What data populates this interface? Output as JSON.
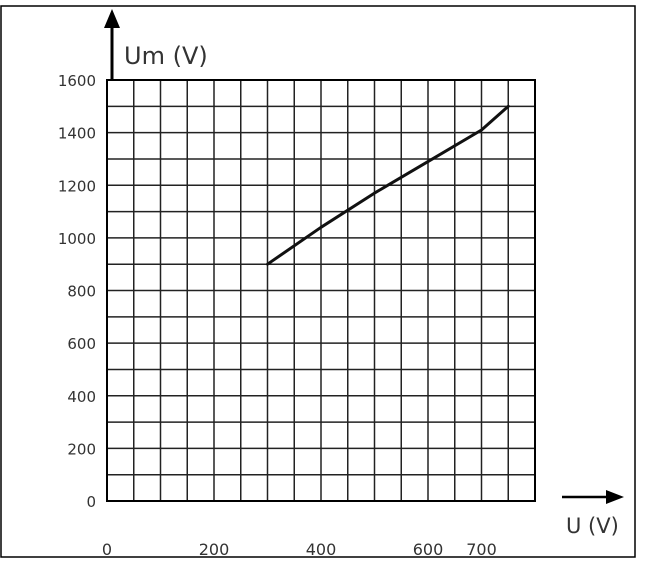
{
  "chart_data": {
    "type": "line",
    "title": "",
    "xlabel": "U (V)",
    "ylabel": "Um (V)",
    "xlim": [
      0,
      800
    ],
    "ylim": [
      0,
      1600
    ],
    "x_ticks": [
      0,
      200,
      400,
      600,
      700
    ],
    "y_ticks": [
      0,
      200,
      400,
      600,
      800,
      1000,
      1200,
      1400,
      1600
    ],
    "grid": true,
    "series": [
      {
        "name": "",
        "x": [
          300,
          400,
          500,
          600,
          700,
          750
        ],
        "y": [
          900,
          1040,
          1170,
          1290,
          1410,
          1500
        ]
      }
    ],
    "colors": {
      "line": "#111111",
      "grid": "#222222",
      "frame": "#000000"
    }
  }
}
